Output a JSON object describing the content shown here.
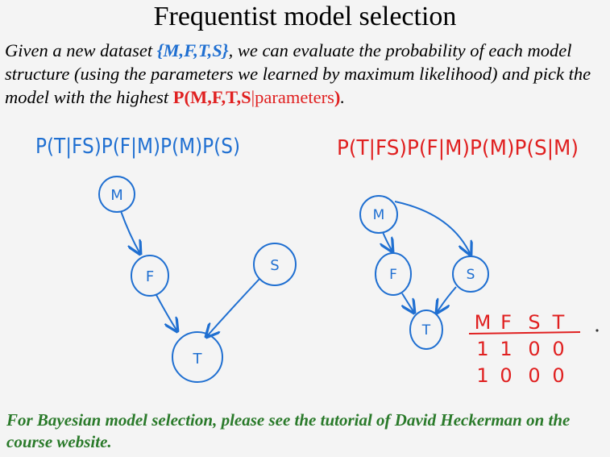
{
  "title": "Frequentist model selection",
  "intro": {
    "p1": "Given a new dataset ",
    "dataset": "{M,F,T,S}",
    "p2": ", we can evaluate the probability of each model structure (using the parameters we learned by maximum likelihood) and pick the model with the highest ",
    "prob_open": "P(M,F,T,S",
    "prob_bar": "|",
    "prob_params": "parameters",
    "prob_close": ")",
    "period": "."
  },
  "colors": {
    "blue": "#1f6fd1",
    "red": "#e02020",
    "green": "#2a7a2a"
  },
  "model_a": {
    "formula": "P(T|FS)P(F|M)P(M)P(S)",
    "nodes": {
      "m": "M",
      "f": "F",
      "s": "S",
      "t": "T"
    }
  },
  "model_b": {
    "formula": "P(T|FS)P(F|M)P(M)P(S|M)",
    "nodes": {
      "m": "M",
      "f": "F",
      "s": "S",
      "t": "T"
    }
  },
  "data_table": {
    "headers": [
      "M",
      "F",
      "S",
      "T"
    ],
    "rows": [
      [
        "1",
        "1",
        "0",
        "0"
      ],
      [
        "1",
        "0",
        "0",
        "0"
      ]
    ]
  },
  "footer": "For Bayesian model selection, please see the tutorial of David Heckerman on the course website."
}
